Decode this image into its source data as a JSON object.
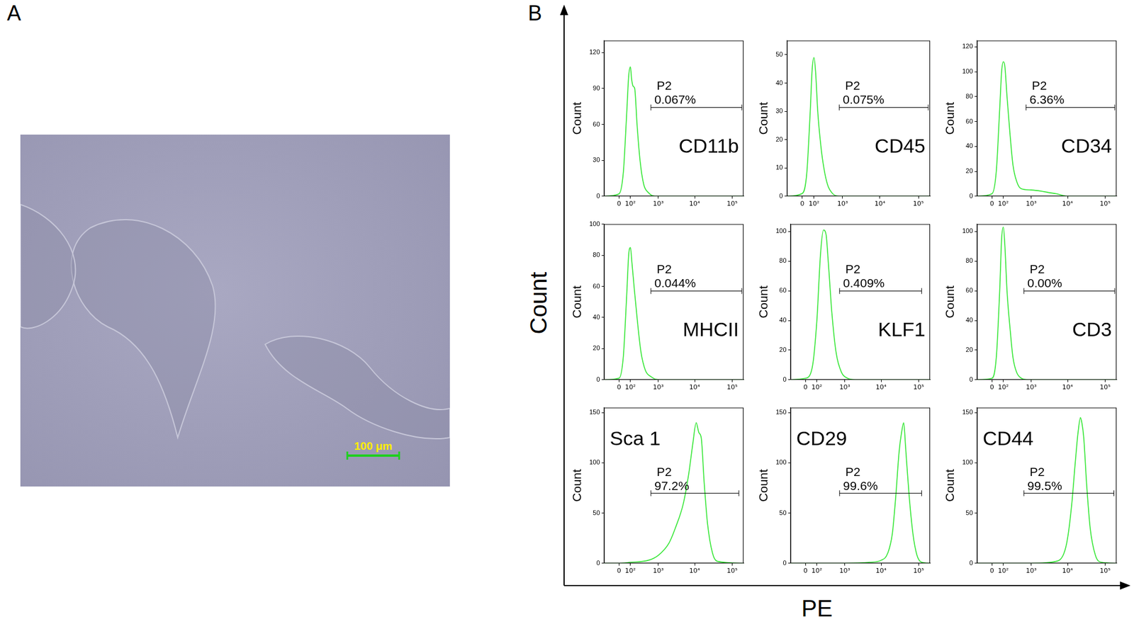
{
  "panels": [
    {
      "label": "A",
      "scale_bar": "100 μm"
    },
    {
      "label": "B"
    }
  ],
  "x_label": "PE",
  "y_label": "Count",
  "chart_data": [
    {
      "type": "line",
      "annotation": "CD11b",
      "color": "#33e633",
      "grid": false,
      "y_label": "Count",
      "x": [
        -60,
        0,
        30,
        60,
        80,
        100,
        115,
        135,
        160,
        200,
        260,
        350,
        500,
        800,
        200000
      ],
      "values": [
        0,
        2,
        20,
        70,
        100,
        108,
        98,
        92,
        90,
        60,
        30,
        10,
        3,
        0,
        0
      ],
      "xlim": [
        -60,
        200000
      ],
      "xticks": [
        {
          "value": 0,
          "label": "0"
        },
        {
          "value": 100,
          "label": "10²"
        },
        {
          "value": 1000,
          "label": "10³"
        },
        {
          "value": 10000,
          "label": "10⁴"
        },
        {
          "value": 100000,
          "label": "10⁵"
        }
      ],
      "ylim": [
        0,
        130
      ],
      "yticks": [
        0,
        30,
        60,
        90,
        120
      ],
      "gate": {
        "name": "P2",
        "label": "0.067%",
        "range": [
          600,
          180000
        ]
      }
    },
    {
      "type": "line",
      "annotation": "CD45",
      "color": "#33e633",
      "grid": false,
      "y_label": "Count",
      "x": [
        -60,
        0,
        30,
        60,
        80,
        100,
        120,
        150,
        200,
        260,
        350,
        500,
        800,
        200000
      ],
      "values": [
        0,
        1,
        8,
        30,
        45,
        49,
        44,
        30,
        18,
        10,
        4,
        1,
        0,
        0
      ],
      "xlim": [
        -60,
        200000
      ],
      "xticks": [
        {
          "value": 0,
          "label": "0"
        },
        {
          "value": 100,
          "label": "10²"
        },
        {
          "value": 1000,
          "label": "10³"
        },
        {
          "value": 10000,
          "label": "10⁴"
        },
        {
          "value": 100000,
          "label": "10⁵"
        }
      ],
      "ylim": [
        0,
        55
      ],
      "yticks": [
        0,
        10,
        20,
        30,
        40,
        50
      ],
      "gate": {
        "name": "P2",
        "label": "0.075%",
        "range": [
          800,
          180000
        ]
      }
    },
    {
      "type": "line",
      "annotation": "CD34",
      "color": "#33e633",
      "grid": false,
      "y_label": "Count",
      "x": [
        -60,
        0,
        30,
        60,
        80,
        100,
        120,
        150,
        200,
        260,
        350,
        500,
        1000,
        2000,
        3000,
        5000,
        10000,
        200000
      ],
      "values": [
        0,
        2,
        20,
        70,
        100,
        108,
        104,
        80,
        50,
        25,
        12,
        6,
        5,
        4,
        3,
        2,
        0,
        0
      ],
      "xlim": [
        -60,
        200000
      ],
      "xticks": [
        {
          "value": 0,
          "label": "0"
        },
        {
          "value": 100,
          "label": "10²"
        },
        {
          "value": 1000,
          "label": "10³"
        },
        {
          "value": 10000,
          "label": "10⁴"
        },
        {
          "value": 100000,
          "label": "10⁵"
        }
      ],
      "ylim": [
        0,
        125
      ],
      "yticks": [
        0,
        20,
        40,
        60,
        80,
        100,
        120
      ],
      "gate": {
        "name": "P2",
        "label": "6.36%",
        "range": [
          700,
          180000
        ]
      }
    },
    {
      "type": "line",
      "annotation": "MHCII",
      "color": "#33e633",
      "grid": false,
      "y_label": "Count",
      "x": [
        -60,
        0,
        30,
        60,
        80,
        100,
        120,
        150,
        200,
        280,
        400,
        600,
        1000,
        200000
      ],
      "values": [
        0,
        1,
        15,
        55,
        80,
        85,
        75,
        60,
        40,
        18,
        6,
        2,
        0,
        0
      ],
      "xlim": [
        -60,
        200000
      ],
      "xticks": [
        {
          "value": 0,
          "label": "0"
        },
        {
          "value": 100,
          "label": "10²"
        },
        {
          "value": 1000,
          "label": "10³"
        },
        {
          "value": 10000,
          "label": "10⁴"
        },
        {
          "value": 100000,
          "label": "10⁵"
        }
      ],
      "ylim": [
        0,
        100
      ],
      "yticks": [
        0,
        20,
        40,
        60,
        80,
        100
      ],
      "gate": {
        "name": "P2",
        "label": "0.044%",
        "range": [
          600,
          180000
        ]
      }
    },
    {
      "type": "line",
      "annotation": "KLF1",
      "color": "#33e633",
      "grid": false,
      "y_label": "Count",
      "x": [
        -60,
        0,
        50,
        100,
        150,
        200,
        250,
        300,
        400,
        550,
        800,
        1200,
        2000,
        200000
      ],
      "values": [
        0,
        1,
        8,
        40,
        85,
        101,
        98,
        80,
        45,
        18,
        5,
        1,
        0,
        0
      ],
      "xlim": [
        -60,
        200000
      ],
      "xticks": [
        {
          "value": 0,
          "label": "0"
        },
        {
          "value": 100,
          "label": "10²"
        },
        {
          "value": 1000,
          "label": "10³"
        },
        {
          "value": 10000,
          "label": "10⁴"
        },
        {
          "value": 100000,
          "label": "10⁵"
        }
      ],
      "ylim": [
        0,
        105
      ],
      "yticks": [
        0,
        20,
        40,
        60,
        80,
        100
      ],
      "gate": {
        "name": "P2",
        "label": "0.409%",
        "range": [
          700,
          120000
        ]
      }
    },
    {
      "type": "line",
      "annotation": "CD3",
      "color": "#33e633",
      "grid": false,
      "y_label": "Count",
      "x": [
        -60,
        0,
        30,
        60,
        80,
        100,
        120,
        150,
        200,
        260,
        350,
        500,
        800,
        200000
      ],
      "values": [
        0,
        1,
        15,
        60,
        95,
        103,
        90,
        60,
        35,
        15,
        5,
        1,
        0,
        0
      ],
      "xlim": [
        -60,
        200000
      ],
      "xticks": [
        {
          "value": 0,
          "label": "0"
        },
        {
          "value": 100,
          "label": "10²"
        },
        {
          "value": 1000,
          "label": "10³"
        },
        {
          "value": 10000,
          "label": "10⁴"
        },
        {
          "value": 100000,
          "label": "10⁵"
        }
      ],
      "ylim": [
        0,
        105
      ],
      "yticks": [
        0,
        20,
        40,
        60,
        80,
        100
      ],
      "gate": {
        "name": "P2",
        "label": "0.00%",
        "range": [
          600,
          180000
        ]
      }
    },
    {
      "type": "line",
      "annotation": "Sca 1",
      "color": "#33e633",
      "grid": false,
      "y_label": "Count",
      "x": [
        -60,
        0,
        100,
        500,
        1000,
        2000,
        3000,
        5000,
        7000,
        9000,
        11000,
        13000,
        15000,
        18000,
        22000,
        30000,
        40000,
        200000
      ],
      "values": [
        0,
        0,
        1,
        3,
        8,
        20,
        35,
        60,
        90,
        120,
        140,
        130,
        125,
        80,
        40,
        10,
        2,
        0
      ],
      "xlim": [
        -60,
        200000
      ],
      "xticks": [
        {
          "value": 0,
          "label": "0"
        },
        {
          "value": 100,
          "label": "10²"
        },
        {
          "value": 1000,
          "label": "10³"
        },
        {
          "value": 10000,
          "label": "10⁴"
        },
        {
          "value": 100000,
          "label": "10⁵"
        }
      ],
      "ylim": [
        0,
        155
      ],
      "yticks": [
        0,
        50,
        100,
        150
      ],
      "gate": {
        "name": "P2",
        "label": "97.2%",
        "range": [
          600,
          150000
        ]
      }
    },
    {
      "type": "line",
      "annotation": "CD29",
      "color": "#33e633",
      "grid": false,
      "y_label": "Count",
      "x": [
        -60,
        1000,
        5000,
        10000,
        15000,
        20000,
        25000,
        30000,
        35000,
        40000,
        45000,
        55000,
        70000,
        90000,
        120000,
        200000
      ],
      "values": [
        0,
        0,
        1,
        3,
        10,
        30,
        70,
        110,
        130,
        140,
        115,
        70,
        30,
        8,
        1,
        0
      ],
      "xlim": [
        -60,
        200000
      ],
      "xticks": [
        {
          "value": 0,
          "label": "0"
        },
        {
          "value": 100,
          "label": "10²"
        },
        {
          "value": 1000,
          "label": "10³"
        },
        {
          "value": 10000,
          "label": "10⁴"
        },
        {
          "value": 100000,
          "label": "10⁵"
        }
      ],
      "ylim": [
        0,
        155
      ],
      "yticks": [
        0,
        50,
        100,
        150
      ],
      "gate": {
        "name": "P2",
        "label": "99.6%",
        "range": [
          700,
          120000
        ]
      }
    },
    {
      "type": "line",
      "annotation": "CD44",
      "color": "#33e633",
      "grid": false,
      "y_label": "Count",
      "x": [
        -60,
        1000,
        5000,
        8000,
        10000,
        13000,
        16000,
        19000,
        22000,
        24000,
        27000,
        32000,
        40000,
        55000,
        80000,
        200000
      ],
      "values": [
        0,
        0,
        2,
        10,
        25,
        60,
        100,
        130,
        145,
        140,
        125,
        80,
        35,
        8,
        1,
        0
      ],
      "xlim": [
        -60,
        200000
      ],
      "xticks": [
        {
          "value": 0,
          "label": "0"
        },
        {
          "value": 100,
          "label": "10²"
        },
        {
          "value": 1000,
          "label": "10³"
        },
        {
          "value": 10000,
          "label": "10⁴"
        },
        {
          "value": 100000,
          "label": "10⁵"
        }
      ],
      "ylim": [
        0,
        155
      ],
      "yticks": [
        0,
        50,
        100,
        150
      ],
      "gate": {
        "name": "P2",
        "label": "99.5%",
        "range": [
          600,
          170000
        ]
      }
    }
  ]
}
